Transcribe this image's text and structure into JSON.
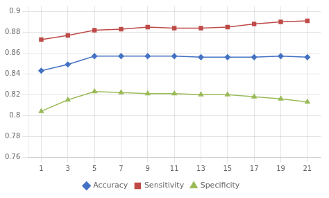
{
  "chart_data": {
    "type": "line",
    "x": [
      1,
      3,
      5,
      7,
      9,
      11,
      13,
      15,
      17,
      19,
      21
    ],
    "series": [
      {
        "name": "Accuracy",
        "color": "#4472C4",
        "marker": "diamond",
        "values": [
          0.843,
          0.849,
          0.857,
          0.857,
          0.857,
          0.857,
          0.856,
          0.856,
          0.856,
          0.857,
          0.856
        ]
      },
      {
        "name": "Sensitivity",
        "color": "#BE4B48",
        "marker": "square",
        "values": [
          0.873,
          0.877,
          0.882,
          0.883,
          0.885,
          0.884,
          0.884,
          0.885,
          0.888,
          0.89,
          0.891
        ]
      },
      {
        "name": "Specificity",
        "color": "#9BBB59",
        "marker": "triangle",
        "values": [
          0.804,
          0.815,
          0.823,
          0.822,
          0.821,
          0.821,
          0.82,
          0.82,
          0.818,
          0.816,
          0.813
        ]
      }
    ],
    "xlim": [
      0,
      22
    ],
    "xticks": [
      1,
      3,
      5,
      7,
      9,
      11,
      13,
      15,
      17,
      19,
      21
    ],
    "ylim": [
      0.76,
      0.905
    ],
    "yticks": [
      0.76,
      0.78,
      0.8,
      0.82,
      0.84,
      0.86,
      0.88,
      0.9
    ],
    "grid": true,
    "legend": "bottom"
  }
}
